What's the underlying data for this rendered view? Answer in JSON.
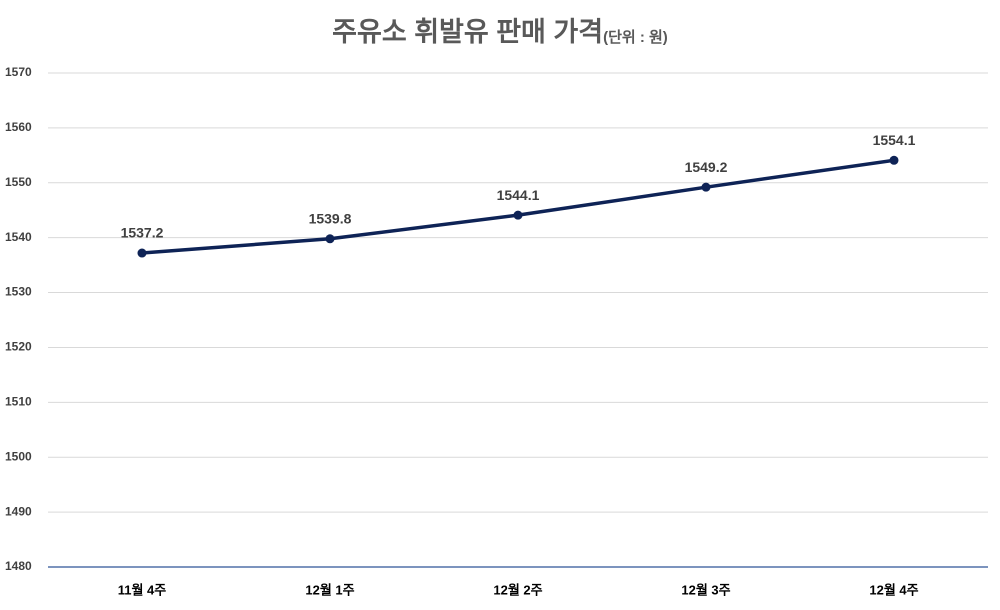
{
  "chart_data": {
    "type": "line",
    "title": "주유소 휘발유 판매 가격",
    "unit": "(단위 : 원)",
    "categories": [
      "11월 4주",
      "12월 1주",
      "12월 2주",
      "12월 3주",
      "12월 4주"
    ],
    "values": [
      1537.2,
      1539.8,
      1544.1,
      1549.2,
      1554.1
    ],
    "color": "#0e2356",
    "ylim": [
      1480,
      1570
    ],
    "yticks": [
      1480,
      1490,
      1500,
      1510,
      1520,
      1530,
      1540,
      1550,
      1560,
      1570
    ],
    "grid": true
  }
}
